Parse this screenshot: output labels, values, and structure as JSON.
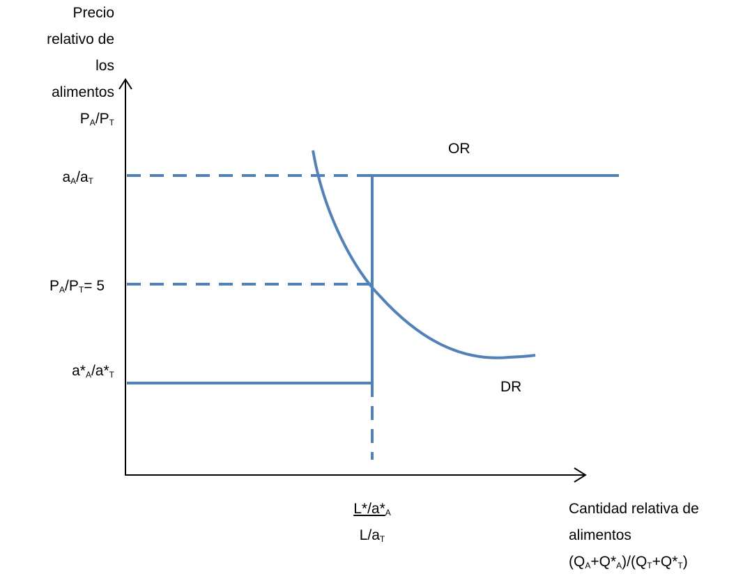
{
  "y_axis_label": {
    "line1": "Precio",
    "line2": "relativo de",
    "line3": "los",
    "line4": "alimentos",
    "symbol": {
      "p1": "P",
      "s1": "A",
      "slash": "/P",
      "s2": "T"
    }
  },
  "x_axis_label": {
    "line1": "Cantidad relativa de",
    "line2": "alimentos",
    "line3": {
      "a": "(Q",
      "s1": "A",
      "b": "+Q*",
      "s2": "A",
      "c": ")/(Q",
      "s3": "T",
      "d": "+Q*",
      "s4": "T",
      "e": ")"
    }
  },
  "y_ticks": {
    "aA_aT": {
      "a": "a",
      "s1": "A",
      "slash": "/a",
      "s2": "T"
    },
    "equilibrium": {
      "p": "P",
      "s1": "A",
      "slash": "/P",
      "s2": "T",
      "tail": "= 5"
    },
    "aStar": {
      "a": "a*",
      "s1": "A",
      "slash": "/a*",
      "s2": "T"
    }
  },
  "x_ticks": {
    "top": {
      "a": "L*/a*",
      "s": "A"
    },
    "bottom": {
      "a": "L/a",
      "s": "T"
    }
  },
  "curves": {
    "supply": "OR",
    "demand": "DR"
  },
  "colors": {
    "line": "#4F81BD",
    "axis": "#000000"
  }
}
